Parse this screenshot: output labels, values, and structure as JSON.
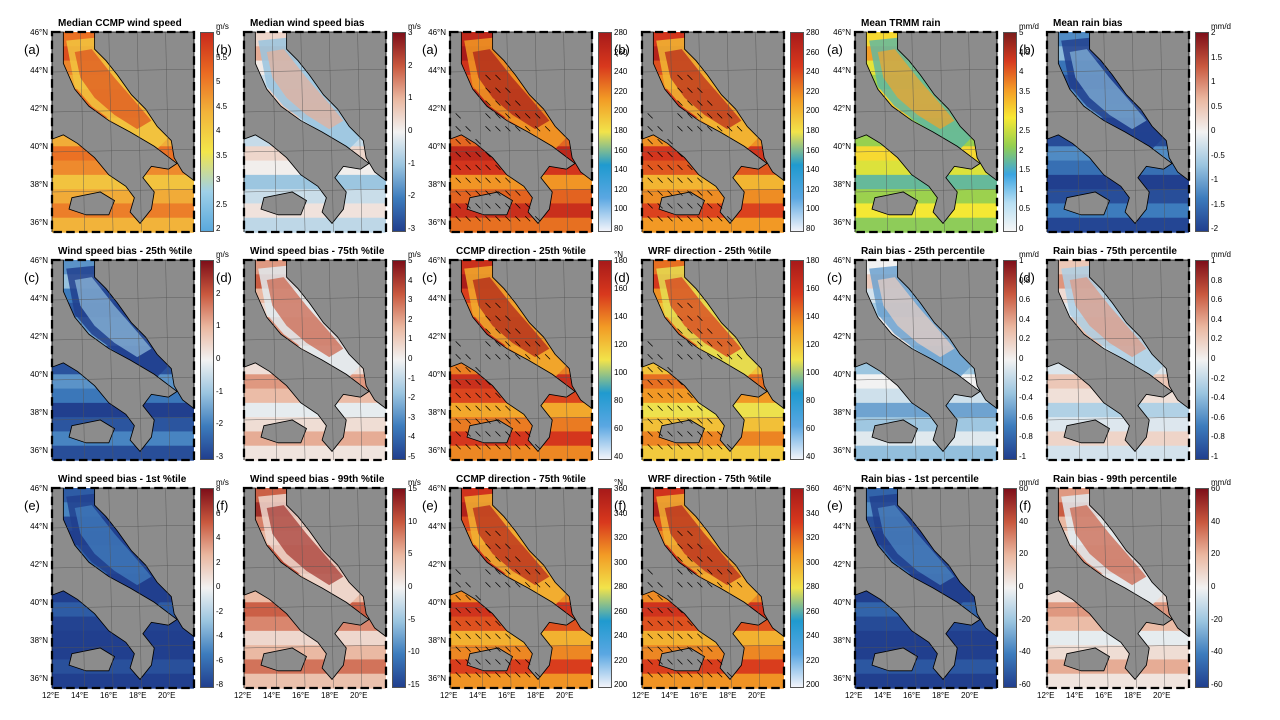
{
  "figure": {
    "colorbars": {
      "speed": [
        "#5aa9dd",
        "#9fd0e8",
        "#f3e64a",
        "#f2b33a",
        "#ea6a22",
        "#c92a1c"
      ],
      "diverge": [
        "#213f8e",
        "#3d7cbd",
        "#9bc5e0",
        "#f2f2f2",
        "#eab7a0",
        "#c8583e",
        "#7e0f19"
      ],
      "rain": [
        "#f6f6f6",
        "#b7dff3",
        "#3aa4e1",
        "#93cf50",
        "#f8e933",
        "#f49b27",
        "#d63a1f",
        "#7b1c1c"
      ],
      "direction": [
        "#f2f4fa",
        "#5aa7e2",
        "#1f9acf",
        "#f2e34a",
        "#f29b25",
        "#d8381d",
        "#a71a1a"
      ]
    },
    "land_color": "#8c8c8c",
    "lat_labels": [
      "46°N",
      "44°N",
      "42°N",
      "40°N",
      "38°N",
      "36°N"
    ],
    "lon_labels": [
      "12°E",
      "14°E",
      "16°E",
      "18°E",
      "20°E"
    ]
  },
  "columns": [
    {
      "id": "wind",
      "panels": [
        {
          "label": "(a)",
          "title": "Median CCMP wind speed",
          "unit": "m/s",
          "cmap": "speed",
          "ticks": [
            "6",
            "5.5",
            "5",
            "4.5",
            "4",
            "3.5",
            "3",
            "2.5",
            "2"
          ],
          "level": 0.78
        },
        {
          "label": "(b)",
          "title": "Median wind speed bias",
          "unit": "m/s",
          "cmap": "diverge",
          "ticks": [
            "3",
            "2",
            "1",
            "0",
            "-1",
            "-2",
            "-3"
          ],
          "level": 0.58
        },
        {
          "label": "(c)",
          "title": "Wind speed bias - 25th %tile",
          "unit": "m/s",
          "cmap": "diverge",
          "ticks": [
            "3",
            "2",
            "1",
            "0",
            "-1",
            "-2",
            "-3"
          ],
          "level": 0.22
        },
        {
          "label": "(d)",
          "title": "Wind speed bias - 75th %tile",
          "unit": "m/s",
          "cmap": "diverge",
          "ticks": [
            "5",
            "4",
            "3",
            "2",
            "1",
            "0",
            "-1",
            "-2",
            "-3",
            "-4",
            "-5"
          ],
          "level": 0.72
        },
        {
          "label": "(e)",
          "title": "Wind speed bias - 1st %tile",
          "unit": "m/s",
          "cmap": "diverge",
          "ticks": [
            "8",
            "6",
            "4",
            "2",
            "0",
            "-2",
            "-4",
            "-6",
            "-8"
          ],
          "level": 0.08
        },
        {
          "label": "(f)",
          "title": "Wind speed bias - 99th %tile",
          "unit": "m/s",
          "cmap": "diverge",
          "ticks": [
            "15",
            "10",
            "5",
            "0",
            "-5",
            "-10",
            "-15"
          ],
          "level": 0.82
        }
      ]
    },
    {
      "id": "direction",
      "panels": [
        {
          "label": "(a)",
          "title": "",
          "unit": "",
          "cmap": "direction",
          "ticks": [
            "280",
            "260",
            "240",
            "220",
            "200",
            "180",
            "160",
            "140",
            "120",
            "100",
            "80"
          ],
          "level": 0.92
        },
        {
          "label": "(b)",
          "title": "",
          "unit": "",
          "cmap": "direction",
          "ticks": [
            "280",
            "260",
            "240",
            "220",
            "200",
            "180",
            "160",
            "140",
            "120",
            "100",
            "80"
          ],
          "level": 0.85
        },
        {
          "label": "(c)",
          "title": "CCMP direction - 25th %tile",
          "unit": "°N",
          "cmap": "direction",
          "ticks": [
            "180",
            "160",
            "140",
            "120",
            "100",
            "80",
            "60",
            "40"
          ],
          "level": 0.88
        },
        {
          "label": "(d)",
          "title": "WRF direction - 25th %tile",
          "unit": "",
          "cmap": "direction",
          "ticks": [
            "180",
            "160",
            "140",
            "120",
            "100",
            "80",
            "60",
            "40"
          ],
          "level": 0.74
        },
        {
          "label": "(e)",
          "title": "CCMP direction - 75th %tile",
          "unit": "°N",
          "cmap": "direction",
          "ticks": [
            "360",
            "340",
            "320",
            "300",
            "280",
            "260",
            "240",
            "220",
            "200"
          ],
          "level": 0.86
        },
        {
          "label": "(f)",
          "title": "WRF direction - 75th %tile",
          "unit": "",
          "cmap": "direction",
          "ticks": [
            "360",
            "340",
            "320",
            "300",
            "280",
            "260",
            "240",
            "220",
            "200"
          ],
          "level": 0.86
        }
      ]
    },
    {
      "id": "rain",
      "panels": [
        {
          "label": "(a)",
          "title": "Mean TRMM rain",
          "unit": "mm/d",
          "cmap": "rain",
          "ticks": [
            "5",
            "4.5",
            "4",
            "3.5",
            "3",
            "2.5",
            "2",
            "1.5",
            "1",
            "0.5",
            "0"
          ],
          "level": 0.6
        },
        {
          "label": "(b)",
          "title": "Mean rain bias",
          "unit": "mm/d",
          "cmap": "diverge",
          "ticks": [
            "2",
            "1.5",
            "1",
            "0.5",
            "0",
            "-0.5",
            "-1",
            "-1.5",
            "-2"
          ],
          "level": 0.2
        },
        {
          "label": "(c)",
          "title": "Rain bias - 25th percentile",
          "unit": "mm/d",
          "cmap": "diverge",
          "ticks": [
            "1",
            "0.8",
            "0.6",
            "0.4",
            "0.2",
            "0",
            "-0.2",
            "-0.4",
            "-0.6",
            "-0.8",
            "-1"
          ],
          "level": 0.5
        },
        {
          "label": "(d)",
          "title": "Rain bias - 75th percentile",
          "unit": "mm/d",
          "cmap": "diverge",
          "ticks": [
            "1",
            "0.8",
            "0.6",
            "0.4",
            "0.2",
            "0",
            "-0.2",
            "-0.4",
            "-0.6",
            "-0.8",
            "-1"
          ],
          "level": 0.62
        },
        {
          "label": "(e)",
          "title": "Rain bias - 1st percentile",
          "unit": "mm/d",
          "cmap": "diverge",
          "ticks": [
            "60",
            "40",
            "20",
            "0",
            "-20",
            "-40",
            "-60"
          ],
          "level": 0.1
        },
        {
          "label": "(f)",
          "title": "Rain bias - 99th percentile",
          "unit": "mm/d",
          "cmap": "diverge",
          "ticks": [
            "60",
            "40",
            "20",
            "0",
            "-20",
            "-40",
            "-60"
          ],
          "level": 0.72
        }
      ]
    }
  ]
}
